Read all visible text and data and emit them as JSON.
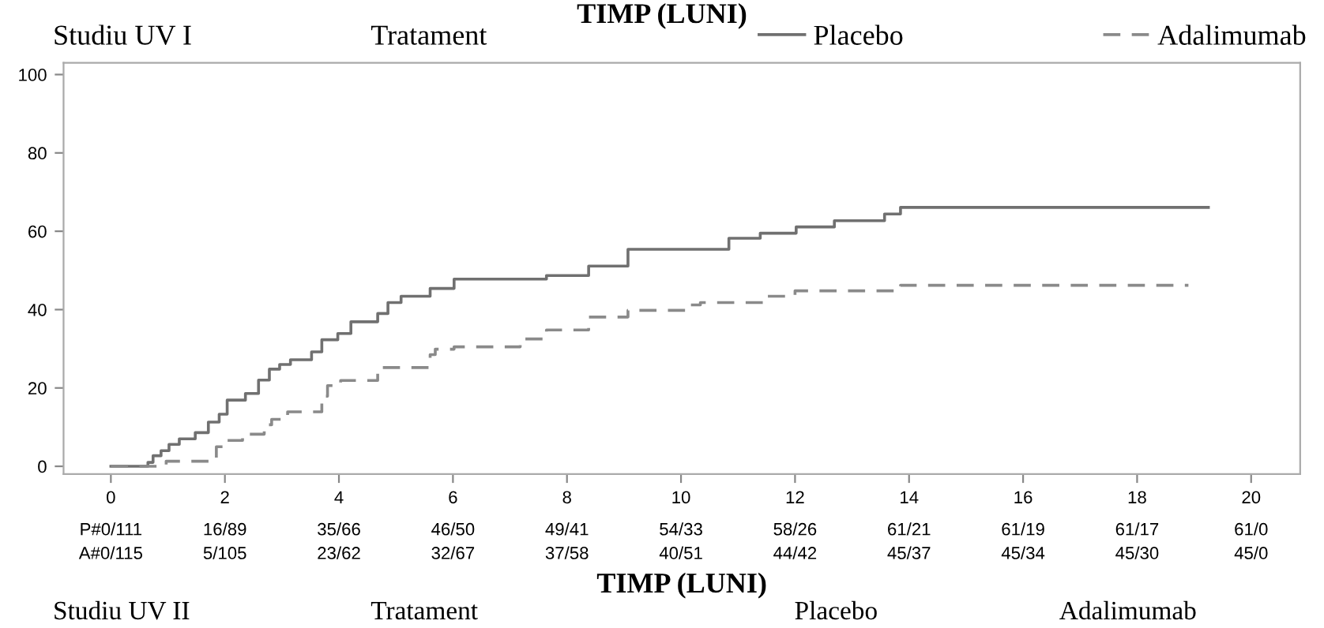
{
  "chart_data": {
    "type": "step",
    "xlabel": "TIMP (LUNI)",
    "xlim": [
      -0.83,
      20.86
    ],
    "ylim": [
      -2,
      103
    ],
    "xticks": [
      0,
      2,
      4,
      6,
      8,
      10,
      12,
      14,
      16,
      18,
      20
    ],
    "yticks": [
      0,
      20,
      40,
      60,
      80,
      100
    ],
    "grid": false,
    "legend": "top",
    "marker": "none",
    "series": [
      {
        "name": "Placebo",
        "color": "#707070",
        "line_style": "solid",
        "x": [
          0,
          0.65,
          0.74,
          0.88,
          1.02,
          1.2,
          1.48,
          1.71,
          1.9,
          2.04,
          2.36,
          2.59,
          2.78,
          2.96,
          3.15,
          3.52,
          3.7,
          3.98,
          4.21,
          4.68,
          4.86,
          5.09,
          5.6,
          6.02,
          7.64,
          8.38,
          9.07,
          10.84,
          11.39,
          12.02,
          12.69,
          13.57,
          13.85,
          19.25
        ],
        "values": [
          0,
          1,
          2.7,
          4,
          5.6,
          7,
          8.6,
          11.3,
          13.3,
          16.9,
          18.6,
          22,
          24.8,
          26,
          27.2,
          29.2,
          32.3,
          33.9,
          36.9,
          39,
          41.8,
          43.4,
          45.4,
          47.8,
          48.7,
          51.1,
          55.4,
          58.2,
          59.5,
          61.1,
          62.7,
          64.4,
          66.1,
          66.1
        ]
      },
      {
        "name": "Adalimumab",
        "color": "#8a8a8a",
        "line_style": "dashed",
        "x": [
          0,
          0.97,
          1.85,
          2.04,
          2.31,
          2.69,
          2.82,
          3.1,
          3.7,
          3.8,
          4.03,
          4.68,
          5.6,
          5.69,
          6.02,
          7.18,
          7.64,
          8.38,
          9.07,
          10.11,
          10.34,
          11.45,
          12.0,
          13.85,
          18.9
        ],
        "values": [
          0,
          1.3,
          5,
          6.6,
          8.2,
          10.6,
          12,
          13.9,
          17.9,
          20.6,
          21.9,
          25.2,
          28.5,
          29.9,
          30.5,
          32.5,
          34.8,
          38.1,
          39.8,
          41.2,
          41.8,
          43.4,
          44.8,
          46.2,
          46.2
        ]
      }
    ],
    "annotations": [
      "TIMP (LUNI)",
      "Studiu UV I",
      "Tratament",
      "P#0/111",
      "16/89",
      "35/66",
      "46/50",
      "49/41",
      "54/33",
      "58/26",
      "61/21",
      "61/19",
      "61/17",
      "61/0",
      "A#0/115",
      "5/105",
      "23/62",
      "32/67",
      "37/58",
      "40/51",
      "44/42",
      "45/37",
      "45/34",
      "45/30",
      "45/0",
      "Studiu UV II",
      "Tratament",
      "Placebo",
      "Adalimumab"
    ]
  }
}
